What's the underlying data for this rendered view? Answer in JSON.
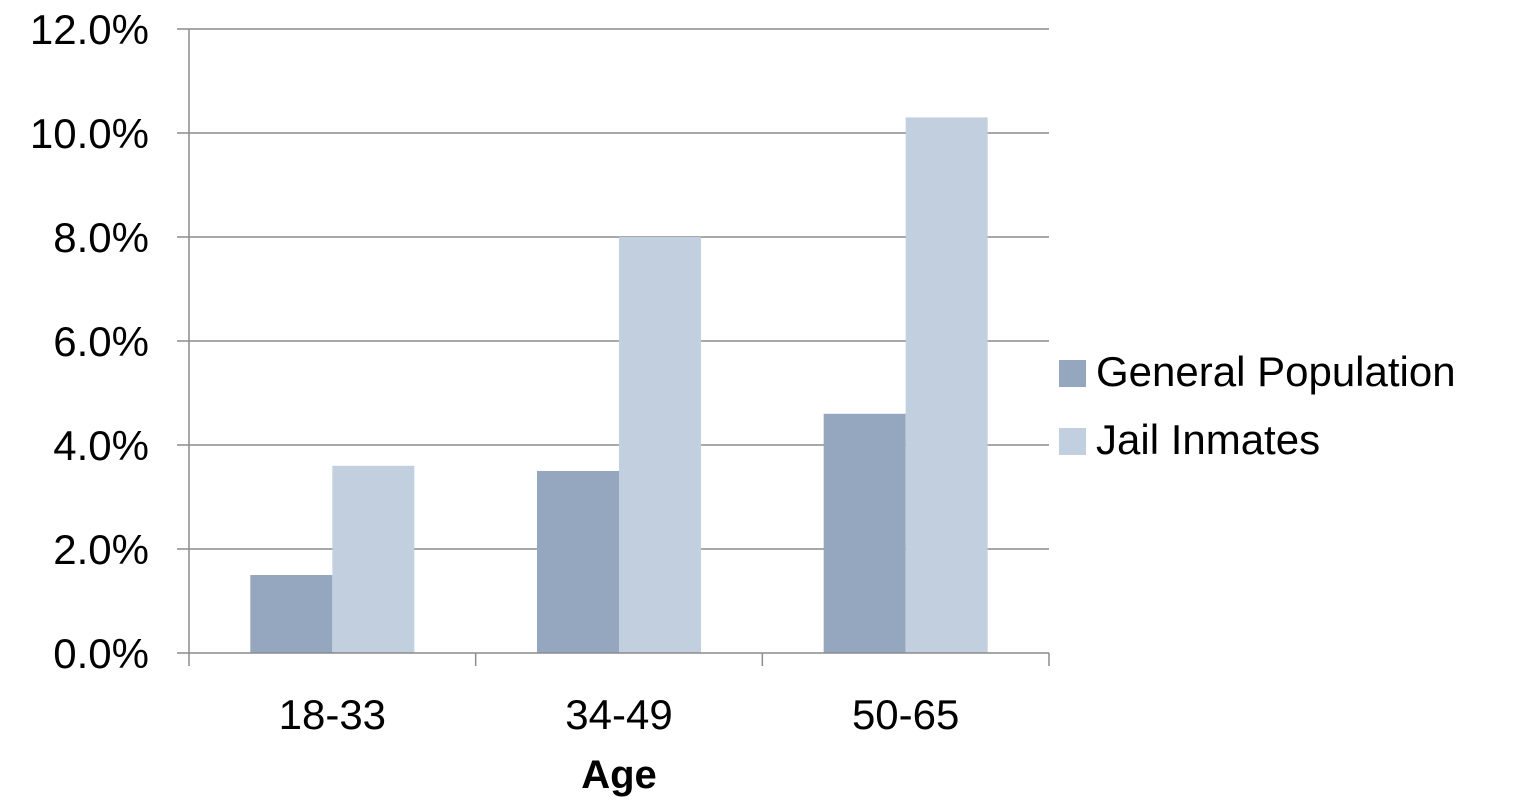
{
  "chart_data": {
    "type": "bar",
    "categories": [
      "18-33",
      "34-49",
      "50-65"
    ],
    "series": [
      {
        "name": "General Population",
        "values": [
          1.5,
          3.5,
          4.6
        ],
        "color": "#95a7bf"
      },
      {
        "name": "Jail Inmates",
        "values": [
          3.6,
          8.0,
          10.3
        ],
        "color": "#c1cfdf"
      }
    ],
    "y_ticks": [
      "0.0%",
      "2.0%",
      "4.0%",
      "6.0%",
      "8.0%",
      "10.0%",
      "12.0%"
    ],
    "ylim": [
      0,
      12
    ],
    "unit": "%",
    "xlabel": "Age",
    "ylabel": "",
    "grid": true,
    "legend_position": "right",
    "gridline_color": "#8c8c8c"
  }
}
